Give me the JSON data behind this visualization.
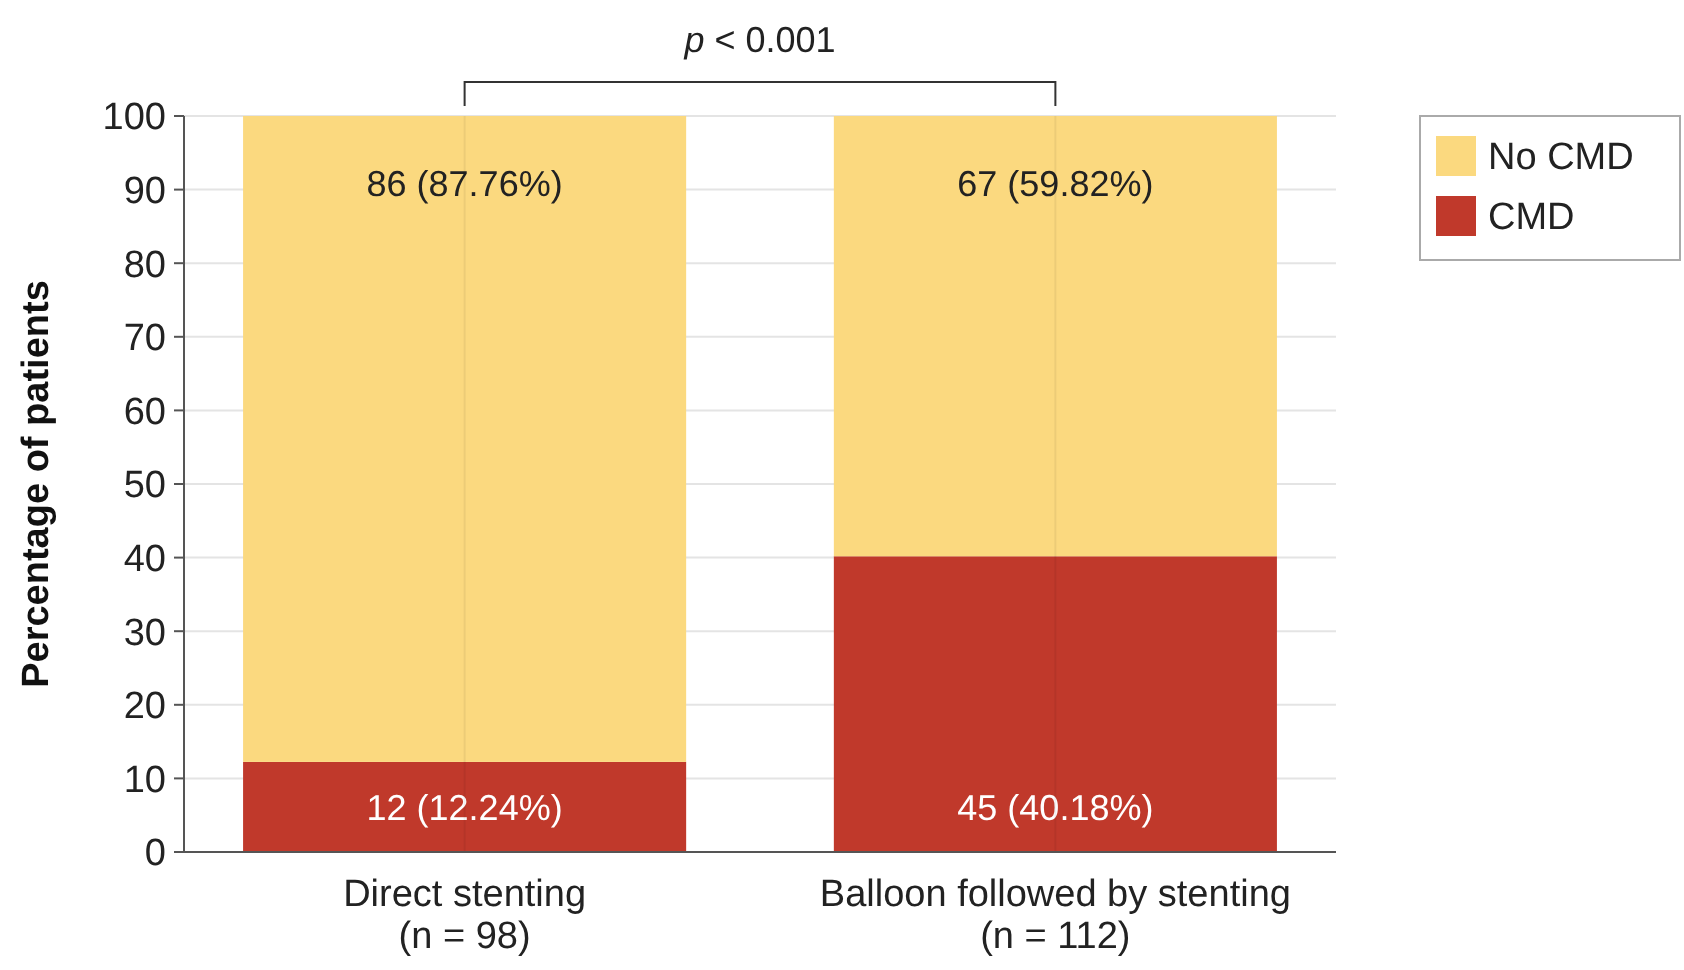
{
  "chart_data": {
    "type": "bar",
    "stacked": true,
    "ylabel": "Percentage of patients",
    "categories": [
      "Direct stenting\n(n = 98)",
      "Balloon followed by stenting\n(n = 112)"
    ],
    "series": [
      {
        "name": "CMD",
        "color": "#c0392b",
        "values": [
          12.24,
          40.18
        ],
        "value_labels": [
          "12 (12.24%)",
          "45 (40.18%)"
        ]
      },
      {
        "name": "No CMD",
        "color": "#fbd97f",
        "values": [
          87.76,
          59.82
        ],
        "value_labels": [
          "86 (87.76%)",
          "67 (59.82%)"
        ]
      }
    ],
    "ylim": [
      0,
      100
    ],
    "yticks": [
      0,
      10,
      20,
      30,
      40,
      50,
      60,
      70,
      80,
      90,
      100
    ],
    "grid": true,
    "legend": "top right",
    "annotations": [
      "p < 0.001"
    ]
  }
}
